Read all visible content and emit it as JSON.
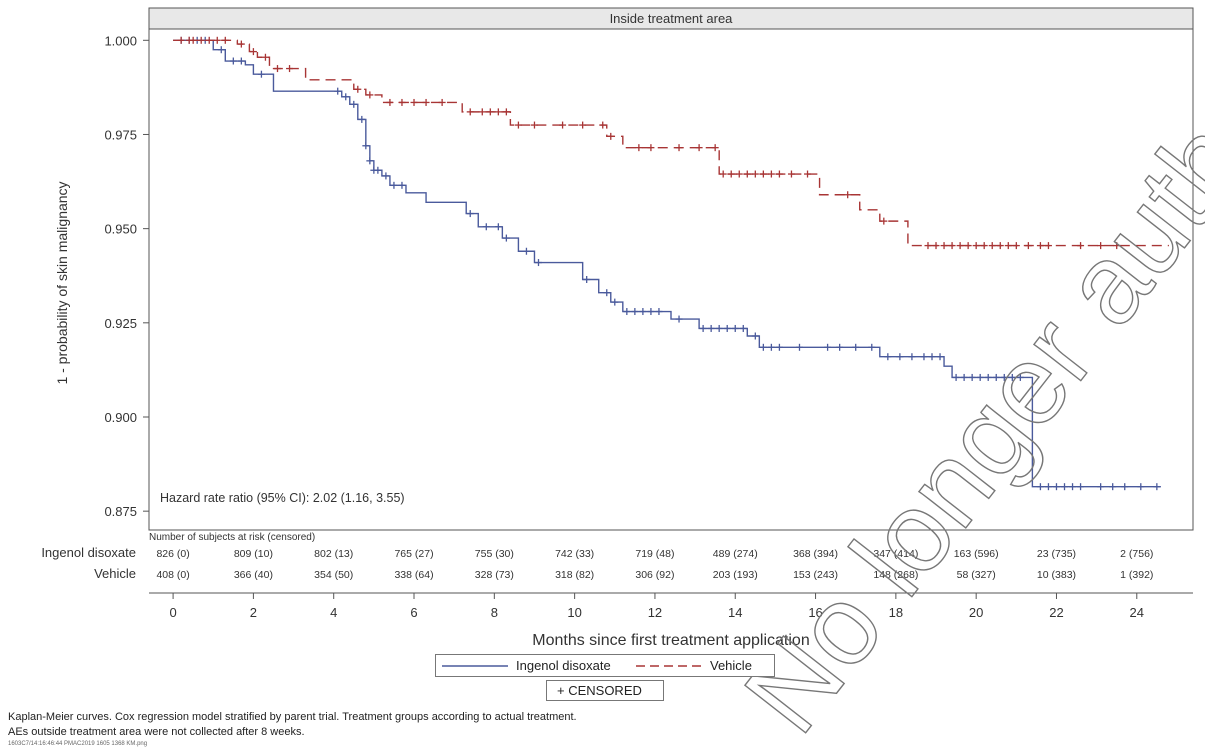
{
  "chart_data": {
    "type": "line",
    "subtitle": "Inside treatment area",
    "xlabel": "Months since first treatment application",
    "ylabel": "1 - probability of skin malignancy",
    "xlim": [
      -0.6,
      25.4
    ],
    "ylim": [
      0.87,
      1.003
    ],
    "x_ticks": [
      0,
      2,
      4,
      6,
      8,
      10,
      12,
      14,
      16,
      18,
      20,
      22,
      24
    ],
    "y_ticks": [
      1.0,
      0.975,
      0.95,
      0.925,
      0.9,
      0.875
    ],
    "y_tick_labels": [
      "1.000",
      "0.975",
      "0.950",
      "0.925",
      "0.900",
      "0.875"
    ],
    "grid": false,
    "annotation": "Hazard rate ratio (95% CI): 2.02 (1.16, 3.55)",
    "series": [
      {
        "name": "Ingenol disoxate",
        "color": "#4a5a9c",
        "dash": "solid",
        "steps": [
          [
            0,
            1.0
          ],
          [
            1.0,
            0.9975
          ],
          [
            1.3,
            0.9945
          ],
          [
            1.8,
            0.9935
          ],
          [
            2.0,
            0.991
          ],
          [
            2.5,
            0.9865
          ],
          [
            4.2,
            0.985
          ],
          [
            4.4,
            0.983
          ],
          [
            4.6,
            0.979
          ],
          [
            4.8,
            0.972
          ],
          [
            4.9,
            0.968
          ],
          [
            5.0,
            0.9655
          ],
          [
            5.2,
            0.964
          ],
          [
            5.4,
            0.9615
          ],
          [
            5.8,
            0.9595
          ],
          [
            6.3,
            0.957
          ],
          [
            7.3,
            0.954
          ],
          [
            7.6,
            0.9505
          ],
          [
            8.2,
            0.9475
          ],
          [
            8.6,
            0.944
          ],
          [
            9.0,
            0.941
          ],
          [
            10.2,
            0.9365
          ],
          [
            10.6,
            0.933
          ],
          [
            10.9,
            0.9305
          ],
          [
            11.2,
            0.928
          ],
          [
            12.4,
            0.926
          ],
          [
            13.1,
            0.9235
          ],
          [
            14.3,
            0.9215
          ],
          [
            14.6,
            0.9185
          ],
          [
            17.6,
            0.916
          ],
          [
            19.2,
            0.9135
          ],
          [
            19.4,
            0.9105
          ],
          [
            21.4,
            0.8815
          ],
          [
            24.6,
            0.8815
          ]
        ],
        "censored": [
          0.2,
          0.4,
          0.6,
          0.8,
          1.2,
          1.5,
          1.7,
          2.2,
          4.1,
          4.3,
          4.5,
          4.7,
          4.8,
          4.9,
          5.0,
          5.1,
          5.3,
          5.5,
          5.7,
          7.4,
          7.8,
          8.1,
          8.3,
          8.8,
          9.1,
          10.3,
          10.8,
          11.0,
          11.3,
          11.5,
          11.7,
          11.9,
          12.1,
          12.6,
          13.2,
          13.4,
          13.6,
          13.8,
          14.0,
          14.2,
          14.5,
          14.7,
          14.9,
          15.1,
          15.6,
          16.3,
          16.6,
          17.0,
          17.4,
          17.8,
          18.1,
          18.4,
          18.7,
          18.9,
          19.1,
          19.5,
          19.7,
          19.9,
          20.1,
          20.3,
          20.5,
          20.7,
          20.9,
          21.1,
          21.6,
          21.8,
          22.0,
          22.2,
          22.4,
          22.6,
          23.1,
          23.4,
          23.7,
          24.1,
          24.5
        ],
        "at_risk": [
          "826 (0)",
          "809 (10)",
          "802 (13)",
          "765 (27)",
          "755 (30)",
          "742 (33)",
          "719 (48)",
          "489 (274)",
          "368 (394)",
          "347 (414)",
          "163 (596)",
          "23 (735)",
          "2 (756)"
        ]
      },
      {
        "name": "Vehicle",
        "color": "#a83535",
        "dash": "dashed",
        "steps": [
          [
            0,
            1.0
          ],
          [
            1.6,
            0.999
          ],
          [
            1.9,
            0.997
          ],
          [
            2.1,
            0.9955
          ],
          [
            2.4,
            0.9925
          ],
          [
            3.3,
            0.9895
          ],
          [
            4.5,
            0.987
          ],
          [
            4.8,
            0.9855
          ],
          [
            5.2,
            0.9835
          ],
          [
            7.2,
            0.981
          ],
          [
            8.4,
            0.9775
          ],
          [
            10.8,
            0.9745
          ],
          [
            11.2,
            0.9715
          ],
          [
            13.6,
            0.9645
          ],
          [
            16.1,
            0.959
          ],
          [
            17.1,
            0.955
          ],
          [
            17.6,
            0.952
          ],
          [
            18.3,
            0.9455
          ],
          [
            24.8,
            0.9455
          ]
        ],
        "censored": [
          0.2,
          0.4,
          0.5,
          0.7,
          0.9,
          1.1,
          1.3,
          1.7,
          2.0,
          2.3,
          2.6,
          2.9,
          4.6,
          4.9,
          5.4,
          5.7,
          6.0,
          6.3,
          6.7,
          7.4,
          7.7,
          7.9,
          8.1,
          8.3,
          8.6,
          9.0,
          9.7,
          10.2,
          10.7,
          10.9,
          11.6,
          11.9,
          12.6,
          13.1,
          13.5,
          13.7,
          13.9,
          14.1,
          14.3,
          14.5,
          14.7,
          14.9,
          15.1,
          15.4,
          15.8,
          16.8,
          17.7,
          18.8,
          19.0,
          19.2,
          19.4,
          19.6,
          19.8,
          20.0,
          20.2,
          20.4,
          20.6,
          20.8,
          21.0,
          21.3,
          21.6,
          21.8,
          22.6,
          23.1,
          23.5
        ],
        "at_risk": [
          "408 (0)",
          "366 (40)",
          "354 (50)",
          "338 (64)",
          "328 (73)",
          "318 (82)",
          "306 (92)",
          "203 (193)",
          "153 (243)",
          "148 (268)",
          "58 (327)",
          "10 (383)",
          "1 (392)"
        ]
      }
    ],
    "at_risk_title": "Number of subjects at risk (censored)",
    "legend": {
      "position": "bottom-center",
      "entries": [
        "Ingenol disoxate",
        "Vehicle"
      ],
      "censored_label": "+ CENSORED"
    }
  },
  "footnotes": {
    "line1": "Kaplan-Meier curves. Cox regression model stratified by parent trial. Treatment groups according to actual treatment.",
    "line2": "AEs outside treatment area were not collected after 8 weeks.",
    "line3": "1603C7/14:16:46:44 PMAC2019 1605 1368 KM.png"
  },
  "watermark": "No longer authorised"
}
